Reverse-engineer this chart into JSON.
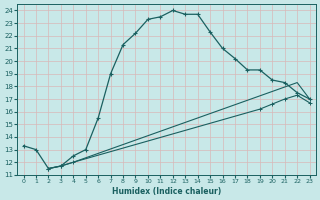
{
  "title": "",
  "xlabel": "Humidex (Indice chaleur)",
  "bg_color": "#c8e8e8",
  "grid_color": "#a8d0d0",
  "line_color": "#1a6060",
  "xlim": [
    -0.5,
    23.5
  ],
  "ylim": [
    11,
    24.5
  ],
  "xticks": [
    0,
    1,
    2,
    3,
    4,
    5,
    6,
    7,
    8,
    9,
    10,
    11,
    12,
    13,
    14,
    15,
    16,
    17,
    18,
    19,
    20,
    21,
    22,
    23
  ],
  "yticks": [
    11,
    12,
    13,
    14,
    15,
    16,
    17,
    18,
    19,
    20,
    21,
    22,
    23,
    24
  ],
  "line1_x": [
    0,
    1,
    2,
    3,
    4,
    5,
    6,
    7,
    8,
    9,
    10,
    11,
    12,
    13,
    14,
    15,
    16,
    17,
    18,
    19,
    20,
    21,
    22,
    23
  ],
  "line1_y": [
    13.3,
    13.0,
    11.5,
    11.7,
    12.5,
    13.0,
    15.5,
    19.0,
    21.3,
    22.2,
    23.3,
    23.5,
    24.0,
    23.7,
    23.7,
    22.3,
    21.0,
    20.2,
    19.3,
    19.3,
    18.5,
    18.3,
    17.5,
    17.0
  ],
  "line2_x": [
    2,
    3,
    4,
    22,
    23
  ],
  "line2_y": [
    11.5,
    11.7,
    12.0,
    18.3,
    17.0
  ],
  "line3_x": [
    2,
    3,
    4,
    19,
    20,
    21,
    22,
    23
  ],
  "line3_y": [
    11.5,
    11.7,
    12.0,
    16.2,
    16.6,
    17.0,
    17.3,
    16.7
  ]
}
